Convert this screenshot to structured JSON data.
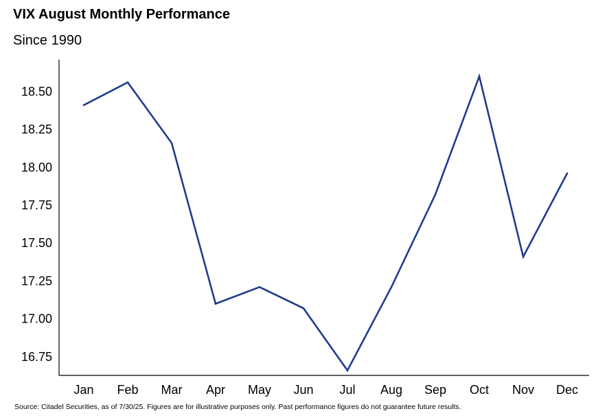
{
  "chart_data": {
    "type": "line",
    "title": "VIX August Monthly Performance",
    "subtitle": "Since 1990",
    "source": "Source: Citadel Securities, as of 7/30/25. Figures are for illustrative purposes only. Past performance figures do not guarantee future results.",
    "categories": [
      "Jan",
      "Feb",
      "Mar",
      "Apr",
      "May",
      "Jun",
      "Jul",
      "Aug",
      "Sep",
      "Oct",
      "Nov",
      "Dec"
    ],
    "series": [
      {
        "values": [
          18.41,
          18.56,
          18.16,
          17.1,
          17.21,
          17.07,
          16.66,
          17.21,
          17.82,
          18.6,
          17.41,
          17.96
        ],
        "color": "#1f3b8f"
      }
    ],
    "yticks": [
      "16.75",
      "17.00",
      "17.25",
      "17.50",
      "17.75",
      "18.00",
      "18.25",
      "18.50"
    ],
    "ylim": [
      16.6275,
      18.7095
    ],
    "grid": false,
    "legend": "none",
    "axis_color": "#000000"
  }
}
